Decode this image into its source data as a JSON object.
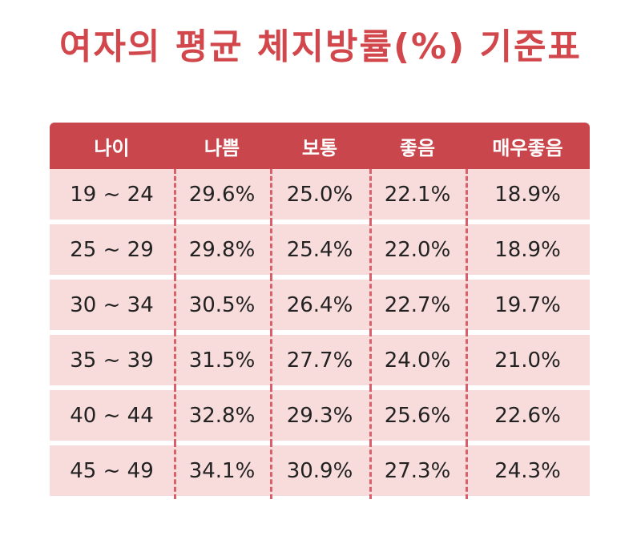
{
  "title": "여자의 평균 체지방률(%) 기준표",
  "table": {
    "headers": [
      "나이",
      "나쁨",
      "보통",
      "좋음",
      "매우좋음"
    ],
    "rows": [
      [
        "19 ~ 24",
        "29.6%",
        "25.0%",
        "22.1%",
        "18.9%"
      ],
      [
        "25 ~ 29",
        "29.8%",
        "25.4%",
        "22.0%",
        "18.9%"
      ],
      [
        "30 ~ 34",
        "30.5%",
        "26.4%",
        "22.7%",
        "19.7%"
      ],
      [
        "35 ~ 39",
        "31.5%",
        "27.7%",
        "24.0%",
        "21.0%"
      ],
      [
        "40 ~ 44",
        "32.8%",
        "29.3%",
        "25.6%",
        "22.6%"
      ],
      [
        "45 ~ 49",
        "34.1%",
        "30.9%",
        "27.3%",
        "24.3%"
      ]
    ]
  },
  "colors": {
    "title": "#d2474b",
    "header_bg": "#c9474c",
    "row_bg": "#f8dcdc",
    "divider": "#d9606a"
  }
}
